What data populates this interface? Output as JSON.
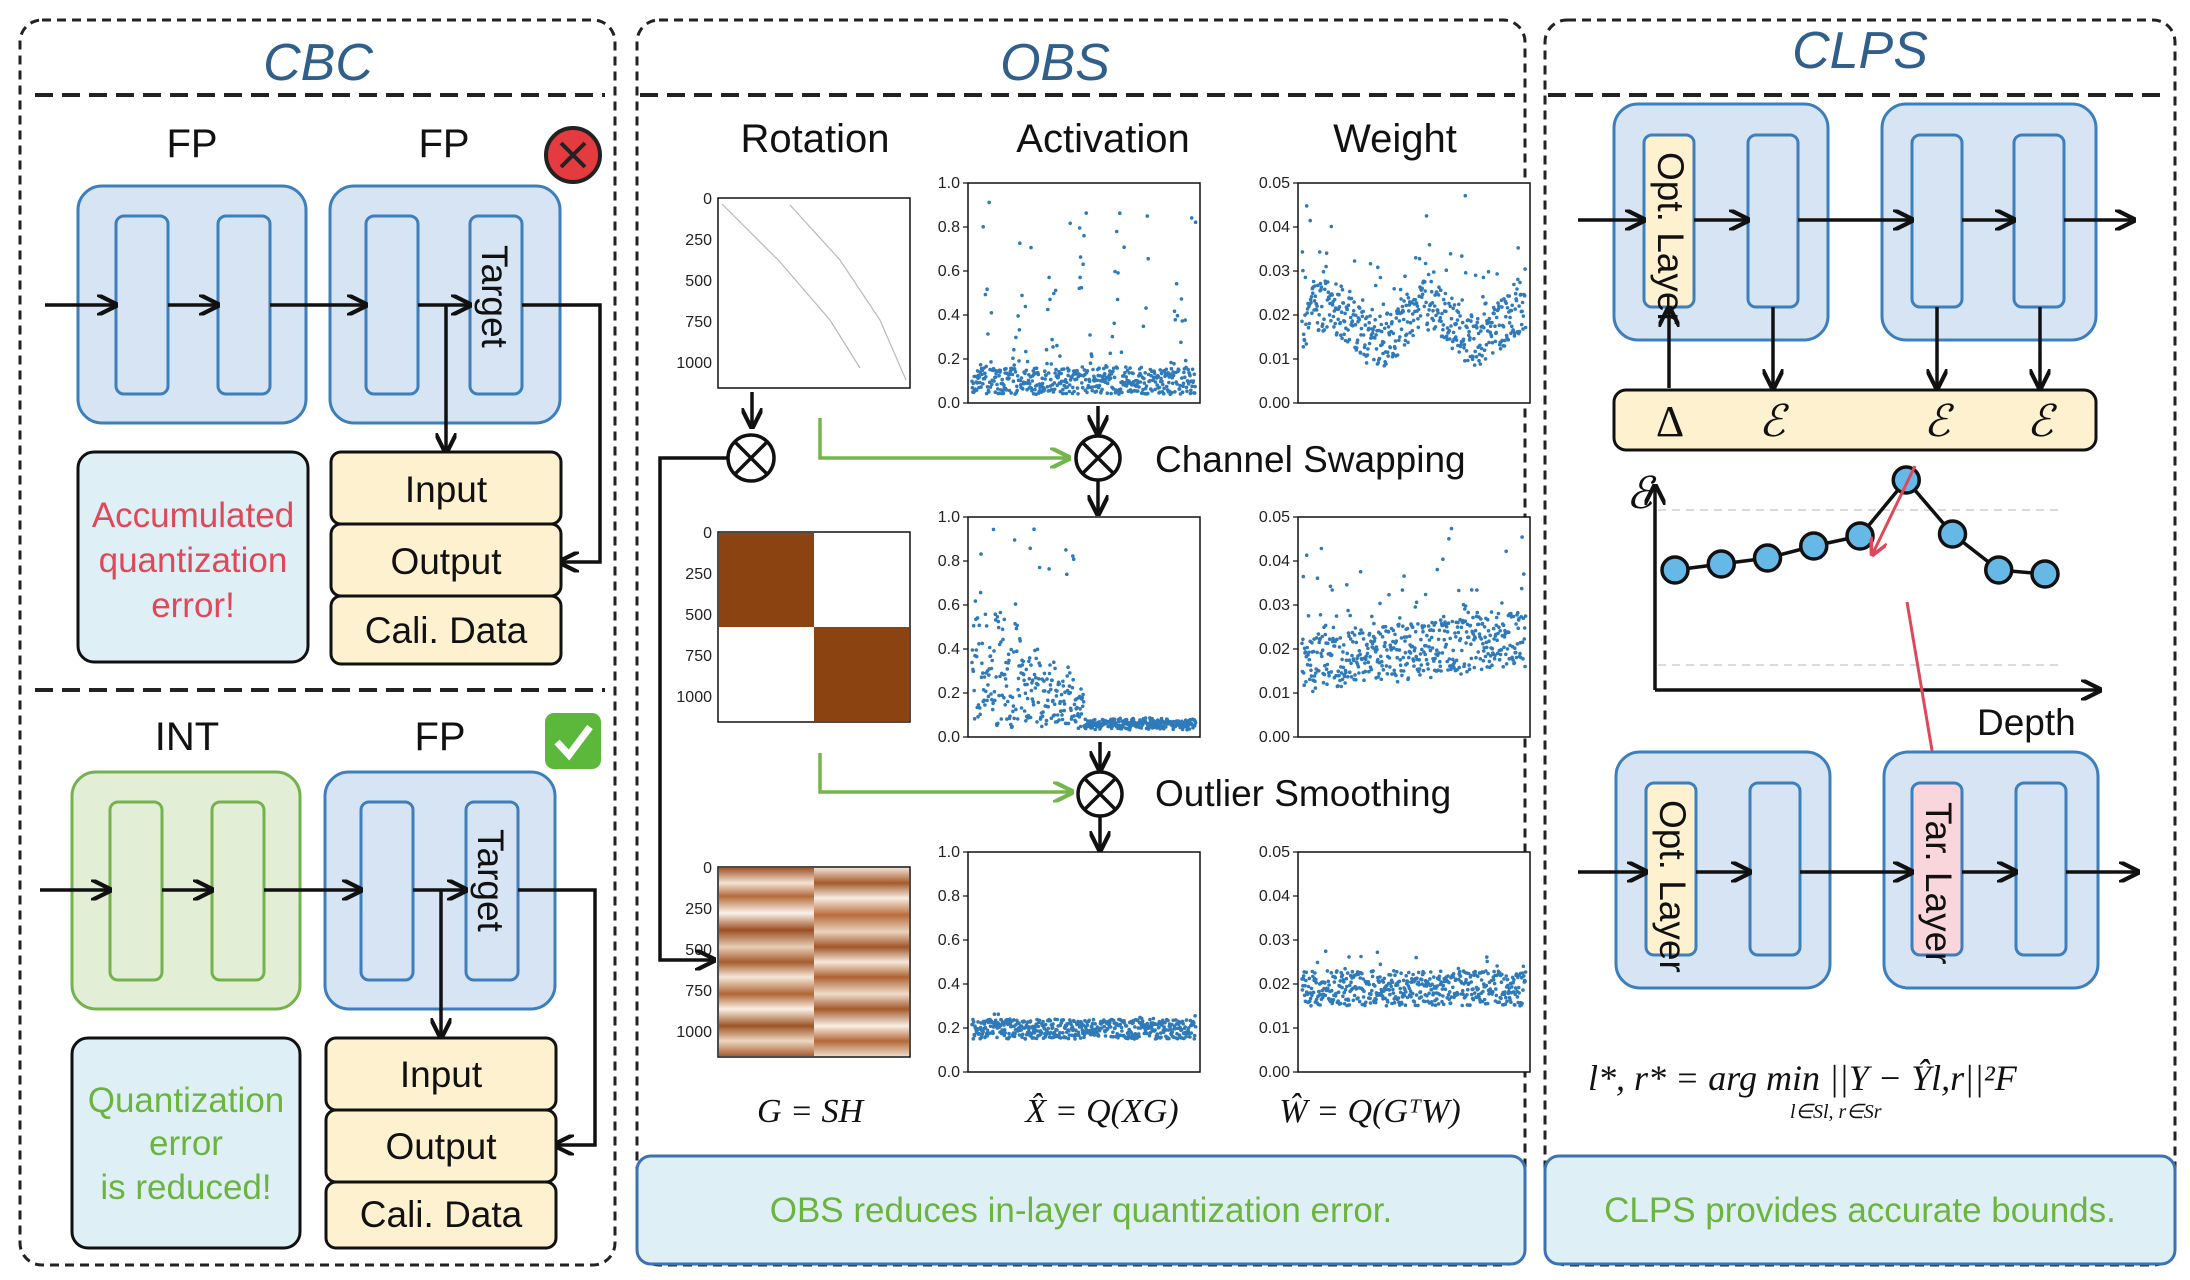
{
  "cbc": {
    "title": "CBC",
    "top": {
      "left_label": "FP",
      "right_label": "FP",
      "target_label": "Target",
      "status_icon": "red-x-circle-icon",
      "message": [
        "Accumulated",
        "quantization",
        "error!"
      ],
      "message_color": "#e0485a",
      "data_rows": [
        "Input",
        "Output",
        "Cali. Data"
      ]
    },
    "bottom": {
      "left_label": "INT",
      "right_label": "FP",
      "target_label": "Target",
      "status_icon": "green-check-icon",
      "message": [
        "Quantization",
        "error",
        "is reduced!"
      ],
      "message_color": "#6cb43f",
      "data_rows": [
        "Input",
        "Output",
        "Cali. Data"
      ]
    }
  },
  "obs": {
    "title": "OBS",
    "col_rotation": "Rotation",
    "col_activation": "Activation",
    "col_weight": "Weight",
    "step1": "Channel Swapping",
    "step2": "Outlier Smoothing",
    "formula_g": "G = SH",
    "formula_x": "X̂ = Q(XG)",
    "formula_w": "Ŵ = Q(GᵀW)",
    "caption": "OBS reduces in-layer quantization error.",
    "caption_color": "#6cb43f",
    "matrix_ticks": [
      "0",
      "250",
      "500",
      "750",
      "1000"
    ],
    "activation_ticks": [
      "0.0",
      "0.2",
      "0.4",
      "0.6",
      "0.8",
      "1.0"
    ],
    "weight_ticks": [
      "0.00",
      "0.01",
      "0.02",
      "0.03",
      "0.04",
      "0.05"
    ],
    "brown": "#8b4311",
    "scatter_color": "#2f7ab8"
  },
  "clps": {
    "title": "CLPS",
    "opt_layer": "Opt. Layer",
    "tar_layer": "Tar. Layer",
    "delta": "Δ",
    "epsilon": "ℰ",
    "chart_ylabel": "ℰ",
    "chart_xlabel": "Depth",
    "formula": "l*, r* = arg min ||Y − Ŷl,r||²F",
    "formula_sub": "l∈Sl, r∈Sr",
    "caption": "CLPS provides accurate bounds.",
    "caption_color": "#6cb43f"
  },
  "chart_data": [
    {
      "type": "scatter",
      "title": "",
      "panel": "activation-original",
      "ylim": [
        0,
        1.0
      ],
      "yticks": [
        0,
        0.2,
        0.4,
        0.6,
        0.8,
        1.0
      ],
      "x": [
        0,
        40,
        80,
        120,
        160,
        200,
        240,
        280,
        320,
        360,
        400,
        440,
        480,
        520,
        560,
        600,
        640,
        680,
        720,
        760,
        800,
        840,
        880,
        920,
        960,
        1000,
        1040,
        1080
      ],
      "y": [
        0.25,
        0.6,
        0.15,
        0.38,
        0.5,
        0.12,
        0.3,
        0.08,
        0.18,
        0.05,
        0.2,
        0.45,
        0.7,
        0.1,
        0.35,
        0.55,
        0.22,
        0.62,
        0.15,
        0.07,
        0.4,
        0.28,
        0.6,
        0.12,
        0.05,
        0.3,
        0.08,
        0.04
      ]
    },
    {
      "type": "scatter",
      "title": "",
      "panel": "weight-original",
      "ylim": [
        0,
        0.05
      ],
      "yticks": [
        0,
        0.01,
        0.02,
        0.03,
        0.04,
        0.05
      ],
      "x": [
        0,
        100,
        200,
        300,
        400,
        500,
        600,
        700,
        800,
        900,
        1000,
        1080
      ],
      "y": [
        0.016,
        0.02,
        0.017,
        0.022,
        0.018,
        0.025,
        0.016,
        0.019,
        0.017,
        0.02,
        0.021,
        0.02
      ]
    },
    {
      "type": "scatter",
      "title": "",
      "panel": "activation-swapped",
      "ylim": [
        0,
        1.0
      ],
      "yticks": [
        0,
        0.2,
        0.4,
        0.6,
        0.8,
        1.0
      ],
      "x": [
        0,
        50,
        100,
        150,
        200,
        250,
        300,
        350,
        400,
        450,
        500,
        600,
        700,
        800,
        900,
        1000,
        1080
      ],
      "y": [
        0.5,
        0.45,
        0.3,
        0.35,
        0.25,
        0.4,
        0.2,
        0.3,
        0.15,
        0.1,
        0.05,
        0.04,
        0.05,
        0.05,
        0.04,
        0.05,
        0.04
      ]
    },
    {
      "type": "scatter",
      "title": "",
      "panel": "weight-swapped",
      "ylim": [
        0,
        0.05
      ],
      "yticks": [
        0,
        0.01,
        0.02,
        0.03,
        0.04,
        0.05
      ],
      "x": [
        0,
        100,
        200,
        300,
        400,
        500,
        600,
        700,
        800,
        900,
        1000,
        1080
      ],
      "y": [
        0.015,
        0.016,
        0.015,
        0.017,
        0.016,
        0.017,
        0.018,
        0.018,
        0.019,
        0.02,
        0.021,
        0.022
      ]
    },
    {
      "type": "scatter",
      "title": "",
      "panel": "activation-smoothed",
      "ylim": [
        0,
        1.0
      ],
      "yticks": [
        0,
        0.2,
        0.4,
        0.6,
        0.8,
        1.0
      ],
      "x": [
        0,
        100,
        200,
        300,
        400,
        500,
        600,
        700,
        800,
        900,
        1000,
        1080
      ],
      "y": [
        0.2,
        0.21,
        0.19,
        0.2,
        0.22,
        0.2,
        0.19,
        0.21,
        0.2,
        0.19,
        0.2,
        0.18
      ]
    },
    {
      "type": "scatter",
      "title": "",
      "panel": "weight-smoothed",
      "ylim": [
        0,
        0.05
      ],
      "yticks": [
        0,
        0.01,
        0.02,
        0.03,
        0.04,
        0.05
      ],
      "x": [
        0,
        100,
        200,
        300,
        400,
        500,
        600,
        700,
        800,
        900,
        1000,
        1080
      ],
      "y": [
        0.018,
        0.019,
        0.018,
        0.02,
        0.019,
        0.018,
        0.019,
        0.02,
        0.018,
        0.019,
        0.02,
        0.019
      ]
    },
    {
      "type": "line",
      "title": "",
      "panel": "clps-error-depth",
      "xlabel": "Depth",
      "ylabel": "ℰ",
      "x": [
        1,
        2,
        3,
        4,
        5,
        6,
        7,
        8,
        9
      ],
      "y": [
        0.3,
        0.33,
        0.36,
        0.42,
        0.47,
        0.75,
        0.48,
        0.3,
        0.28
      ],
      "ylim": [
        0,
        1
      ]
    }
  ]
}
